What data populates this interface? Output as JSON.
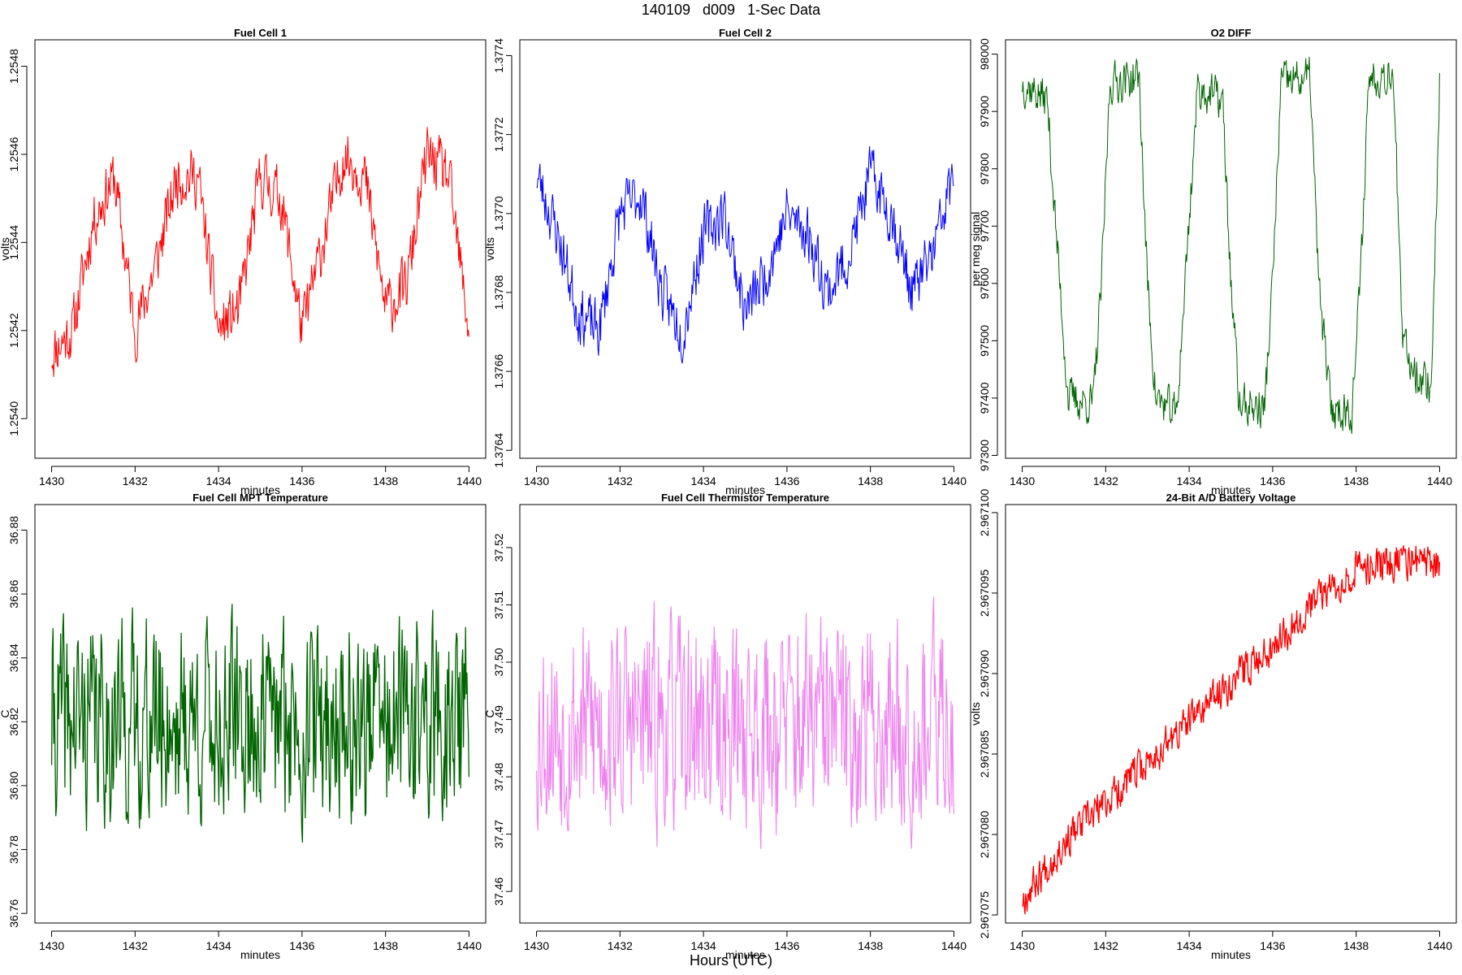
{
  "page": {
    "title": "140109   d009   1-Sec Data",
    "bottom_label": "Hours (UTC)"
  },
  "chart_data": [
    {
      "type": "line",
      "title": "Fuel Cell 1",
      "xlabel": "minutes",
      "ylabel": "volts",
      "color": "#ff0000",
      "xlim": [
        1430,
        1440
      ],
      "ylim": [
        1.25391,
        1.25486
      ],
      "xticks": [
        "1430",
        "1432",
        "1434",
        "1436",
        "1438",
        "1440"
      ],
      "yticks": [
        "1.2540",
        "1.2542",
        "1.2544",
        "1.2546",
        "1.2548"
      ],
      "ytick_values": [
        1.254,
        1.2542,
        1.2544,
        1.2546,
        1.2548
      ],
      "x": [
        1430.0,
        1430.5,
        1431.0,
        1431.5,
        1432.0,
        1432.5,
        1433.0,
        1433.5,
        1434.0,
        1434.5,
        1435.0,
        1435.5,
        1436.0,
        1436.5,
        1437.0,
        1437.5,
        1438.0,
        1438.5,
        1439.0,
        1439.5,
        1440.0
      ],
      "values": [
        1.25415,
        1.2542,
        1.25445,
        1.25455,
        1.2542,
        1.25435,
        1.25455,
        1.25455,
        1.2542,
        1.25425,
        1.25455,
        1.2545,
        1.2542,
        1.2544,
        1.2546,
        1.25455,
        1.25425,
        1.2543,
        1.2546,
        1.25455,
        1.2542
      ],
      "line_width": 1,
      "noise": 9e-05,
      "seed": 11
    },
    {
      "type": "line",
      "title": "Fuel Cell 2",
      "xlabel": "minutes",
      "ylabel": "volts",
      "color": "#0000ff",
      "xlim": [
        1430,
        1440
      ],
      "ylim": [
        1.37638,
        1.37744
      ],
      "xticks": [
        "1430",
        "1432",
        "1434",
        "1436",
        "1438",
        "1440"
      ],
      "yticks": [
        "1.3764",
        "1.3766",
        "1.3768",
        "1.3770",
        "1.3772",
        "1.3774"
      ],
      "ytick_values": [
        1.3764,
        1.3766,
        1.3768,
        1.377,
        1.3772,
        1.3774
      ],
      "x": [
        1430.0,
        1430.5,
        1431.0,
        1431.5,
        1432.0,
        1432.5,
        1433.0,
        1433.5,
        1434.0,
        1434.5,
        1435.0,
        1435.5,
        1436.0,
        1436.5,
        1437.0,
        1437.5,
        1438.0,
        1438.5,
        1439.0,
        1439.5,
        1440.0
      ],
      "values": [
        1.3771,
        1.37695,
        1.37675,
        1.3767,
        1.377,
        1.37705,
        1.3768,
        1.3767,
        1.37695,
        1.377,
        1.37675,
        1.37685,
        1.377,
        1.37695,
        1.3768,
        1.3769,
        1.3771,
        1.377,
        1.3768,
        1.3769,
        1.3771
      ],
      "line_width": 1,
      "noise": 0.0001,
      "seed": 23
    },
    {
      "type": "line",
      "title": "O2 DIFF",
      "xlabel": "minutes",
      "ylabel": "per meg signal",
      "color": "#006400",
      "xlim": [
        1430,
        1440
      ],
      "ylim": [
        97295,
        98025
      ],
      "xticks": [
        "1430",
        "1432",
        "1434",
        "1436",
        "1438",
        "1440"
      ],
      "yticks": [
        "97300",
        "97400",
        "97500",
        "97600",
        "97700",
        "97800",
        "97900",
        "98000"
      ],
      "ytick_values": [
        97300,
        97400,
        97500,
        97600,
        97700,
        97800,
        97900,
        98000
      ],
      "x": [
        1430.0,
        1430.6,
        1430.8,
        1431.1,
        1431.7,
        1431.9,
        1432.1,
        1432.8,
        1433.0,
        1433.2,
        1433.7,
        1433.9,
        1434.2,
        1434.8,
        1435.0,
        1435.2,
        1435.8,
        1436.0,
        1436.2,
        1436.9,
        1437.1,
        1437.4,
        1437.9,
        1438.1,
        1438.3,
        1438.9,
        1439.1,
        1439.4,
        1439.8,
        1440.0
      ],
      "values": [
        97950,
        97920,
        97700,
        97400,
        97390,
        97600,
        97950,
        97960,
        97600,
        97400,
        97370,
        97600,
        97940,
        97920,
        97600,
        97390,
        97380,
        97600,
        97950,
        97960,
        97600,
        97380,
        97380,
        97600,
        97960,
        97970,
        97500,
        97450,
        97420,
        97950
      ],
      "line_width": 1,
      "noise": 50,
      "seed": 37
    },
    {
      "type": "line",
      "title": "Fuel Cell MPT Temperature",
      "xlabel": "minutes",
      "ylabel": "C",
      "color": "#006400",
      "xlim": [
        1430,
        1440
      ],
      "ylim": [
        36.757,
        36.888
      ],
      "xticks": [
        "1430",
        "1432",
        "1434",
        "1436",
        "1438",
        "1440"
      ],
      "yticks": [
        "36.76",
        "36.78",
        "36.80",
        "36.82",
        "36.84",
        "36.86",
        "36.88"
      ],
      "ytick_values": [
        36.76,
        36.78,
        36.8,
        36.82,
        36.84,
        36.86,
        36.88
      ],
      "x": [
        1430.0,
        1440.0
      ],
      "values": [
        36.82,
        36.82
      ],
      "line_width": 1.3,
      "noise": 0.042,
      "seed": 41
    },
    {
      "type": "line",
      "title": "Fuel Cell Thermistor Temperature",
      "xlabel": "minutes",
      "ylabel": "C",
      "color": "#ee82ee",
      "xlim": [
        1430,
        1440
      ],
      "ylim": [
        37.4545,
        37.5275
      ],
      "xticks": [
        "1430",
        "1432",
        "1434",
        "1436",
        "1438",
        "1440"
      ],
      "yticks": [
        "37.46",
        "37.47",
        "37.48",
        "37.49",
        "37.50",
        "37.51",
        "37.52"
      ],
      "ytick_values": [
        37.46,
        37.47,
        37.48,
        37.49,
        37.5,
        37.51,
        37.52
      ],
      "x": [
        1430.0,
        1440.0
      ],
      "values": [
        37.489,
        37.489
      ],
      "line_width": 1.1,
      "noise": 0.025,
      "seed": 53
    },
    {
      "type": "line",
      "title": "24-Bit A/D Battery Voltage",
      "xlabel": "minutes",
      "ylabel": "volts",
      "color": "#ff0000",
      "xlim": [
        1430,
        1440
      ],
      "ylim": [
        2.9670745,
        2.9671005
      ],
      "xticks": [
        "1430",
        "1432",
        "1434",
        "1436",
        "1438",
        "1440"
      ],
      "yticks": [
        "2.967075",
        "2.967080",
        "2.967085",
        "2.967090",
        "2.967095",
        "2.967100"
      ],
      "ytick_values": [
        2.967075,
        2.96708,
        2.967085,
        2.96709,
        2.967095,
        2.9671
      ],
      "x": [
        1430.0,
        1431.0,
        1432.0,
        1433.0,
        1434.0,
        1435.0,
        1436.0,
        1437.0,
        1438.0,
        1439.0,
        1440.0
      ],
      "values": [
        2.967076,
        2.9670795,
        2.967082,
        2.9670845,
        2.967087,
        2.9670895,
        2.9670918,
        2.9670945,
        2.9670965,
        2.967097,
        2.9670968
      ],
      "line_width": 1.3,
      "noise": 1.6e-06,
      "seed": 67
    }
  ]
}
